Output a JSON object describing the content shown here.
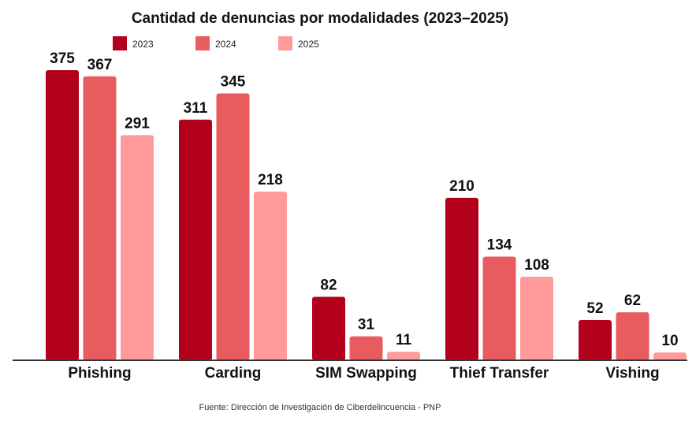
{
  "chart_data": {
    "type": "bar",
    "title": "Cantidad de denuncias por modalidades (2023–2025)",
    "categories": [
      "Phishing",
      "Carding",
      "SIM Swapping",
      "Thief Transfer",
      "Vishing"
    ],
    "series": [
      {
        "name": "2023",
        "color": "#b3001b",
        "values": [
          375,
          311,
          82,
          210,
          52
        ]
      },
      {
        "name": "2024",
        "color": "#e85c5f",
        "values": [
          367,
          345,
          31,
          134,
          62
        ]
      },
      {
        "name": "2025",
        "color": "#ff9a9a",
        "values": [
          291,
          218,
          11,
          108,
          10
        ]
      }
    ],
    "ylim": [
      0,
      375
    ],
    "grid": false,
    "legend_position": "top"
  },
  "source": "Fuente: Dirección de Investigación de Ciberdelincuencia - PNP"
}
